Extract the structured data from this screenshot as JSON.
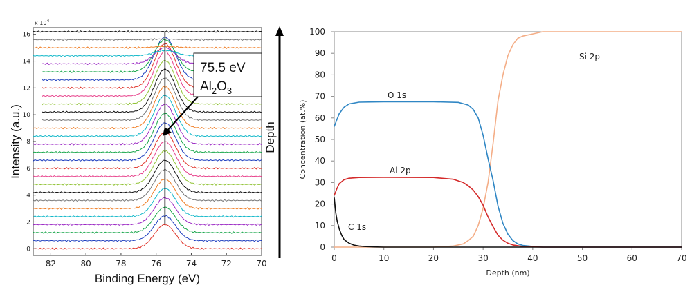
{
  "chart_data": [
    {
      "type": "line",
      "xlabel": "Binding Energy (eV)",
      "ylabel": "Intensity (a.u.)",
      "multiplier": {
        "base": "x 10",
        "exp": "4"
      },
      "xlim": [
        83,
        70
      ],
      "ylim": [
        -0.5,
        16.5
      ],
      "x_ticks": [
        82,
        80,
        78,
        76,
        74,
        72,
        70
      ],
      "y_ticks": [
        0,
        2,
        4,
        6,
        8,
        10,
        12,
        14,
        16
      ],
      "peak": {
        "energy": 75.5,
        "label": "75.5 eV",
        "species_main": "Al",
        "species_sub": "2",
        "species_tail": "O",
        "species_sub2": "3"
      },
      "n_spectra": 28,
      "offset_step": 0.6,
      "peak_heights": [
        1.8,
        1.85,
        1.9,
        2.0,
        2.1,
        2.2,
        2.3,
        2.4,
        2.5,
        2.6,
        2.7,
        2.8,
        2.9,
        3.0,
        3.05,
        3.1,
        3.15,
        3.2,
        3.25,
        3.3,
        3.3,
        3.2,
        2.4,
        1.2,
        0.4,
        0.1,
        0.05,
        0.0
      ],
      "colors": [
        "#e0342a",
        "#1f3fbf",
        "#18a64a",
        "#9b29c4",
        "#12b8c9",
        "#f07d23",
        "#777777",
        "#111111",
        "#90c234",
        "#e73f8a"
      ],
      "depth_label": "Depth"
    },
    {
      "type": "line",
      "xlabel": "Depth (nm)",
      "ylabel": "Concentration (at.%)",
      "xlim": [
        0,
        70
      ],
      "ylim": [
        0,
        100
      ],
      "x_ticks": [
        0,
        10,
        20,
        30,
        40,
        50,
        60,
        70
      ],
      "y_ticks": [
        0,
        10,
        20,
        30,
        40,
        50,
        60,
        70,
        80,
        90,
        100
      ],
      "series": [
        {
          "name": "O 1s",
          "color": "#2f86c4",
          "x": [
            0,
            0.5,
            1,
            2,
            3,
            5,
            10,
            20,
            25,
            27,
            28,
            29,
            30,
            31,
            32,
            33,
            34,
            35,
            36,
            37,
            38,
            40,
            42,
            45,
            70
          ],
          "y": [
            56,
            59,
            62,
            65,
            66.5,
            67.3,
            67.5,
            67.5,
            67.2,
            66,
            64,
            60,
            52,
            41,
            31,
            19,
            11,
            6,
            3,
            1.5,
            0.8,
            0.3,
            0,
            0,
            0
          ]
        },
        {
          "name": "Al 2p",
          "color": "#d42a2a",
          "x": [
            0,
            0.5,
            1,
            2,
            3,
            5,
            10,
            20,
            24,
            26,
            27,
            28,
            29,
            30,
            31,
            32,
            33,
            34,
            35,
            36,
            38,
            40,
            42,
            70
          ],
          "y": [
            24,
            27,
            29.5,
            31.3,
            32,
            32.3,
            32.4,
            32.3,
            31.5,
            30,
            28.5,
            26.5,
            23.5,
            19.5,
            14,
            9.5,
            5.5,
            3.2,
            1.8,
            1,
            0.3,
            0.1,
            0,
            0
          ]
        },
        {
          "name": "C 1s",
          "color": "#111111",
          "x": [
            0,
            0.3,
            0.6,
            1,
            1.5,
            2,
            3,
            4,
            5,
            6,
            8,
            10,
            70
          ],
          "y": [
            23,
            16,
            12,
            8.5,
            5.5,
            3.5,
            1.8,
            0.9,
            0.5,
            0.3,
            0.1,
            0,
            0
          ]
        },
        {
          "name": "Si 2p",
          "color": "#f4ad86",
          "x": [
            0,
            10,
            20,
            24,
            26,
            27,
            28,
            29,
            30,
            31,
            32,
            33,
            34,
            35,
            36,
            37,
            38,
            40,
            42,
            70
          ],
          "y": [
            0,
            0,
            0,
            0.5,
            1.5,
            3,
            5,
            10,
            18,
            30,
            48,
            68,
            80,
            89,
            94,
            97,
            98,
            99,
            100,
            100
          ]
        }
      ]
    }
  ]
}
